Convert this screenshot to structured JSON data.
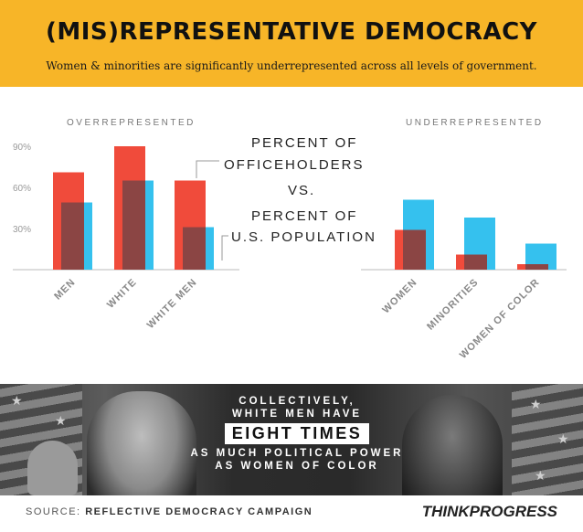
{
  "header": {
    "title": "(MIS)REPRESENTATIVE DEMOCRACY",
    "subtitle": "Women & minorities are significantly underrepresented across all levels of government."
  },
  "groups": {
    "left": "OVERREPRESENTED",
    "right": "UNDERREPRESENTED"
  },
  "legend": {
    "line1": "PERCENT OF",
    "line2": "OFFICEHOLDERS",
    "line3": "VS.",
    "line4": "PERCENT OF",
    "line5": "U.S. POPULATION"
  },
  "colors": {
    "officeholders": "#f04b3b",
    "population": "#35c1ee",
    "overlap": "#8b4544",
    "axis": "#bbbbbb",
    "tick_text": "#999999",
    "category_text": "#888888"
  },
  "chart_data": {
    "type": "bar",
    "categories": [
      "MEN",
      "WHITE",
      "WHITE MEN",
      "WOMEN",
      "MINORITIES",
      "WOMEN OF COLOR"
    ],
    "series": [
      {
        "name": "PERCENT OF OFFICEHOLDERS",
        "values": [
          71,
          90,
          65,
          29,
          11,
          4
        ]
      },
      {
        "name": "PERCENT OF U.S. POPULATION",
        "values": [
          49,
          65,
          31,
          51,
          38,
          19
        ]
      }
    ],
    "yticks": [
      "90%",
      "60%",
      "30%"
    ],
    "ytick_values": [
      90,
      60,
      30
    ],
    "ylim": [
      0,
      100
    ],
    "title": "",
    "xlabel": "",
    "ylabel": ""
  },
  "photo": {
    "line1": "COLLECTIVELY,",
    "line2": "WHITE MEN HAVE",
    "big": "EIGHT TIMES",
    "line3": "AS MUCH POLITICAL POWER",
    "line4": "AS WOMEN OF COLOR"
  },
  "footer": {
    "source_prefix": "SOURCE:",
    "source_name": "REFLECTIVE DEMOCRACY CAMPAIGN",
    "logo": "THINKPROGRESS"
  }
}
